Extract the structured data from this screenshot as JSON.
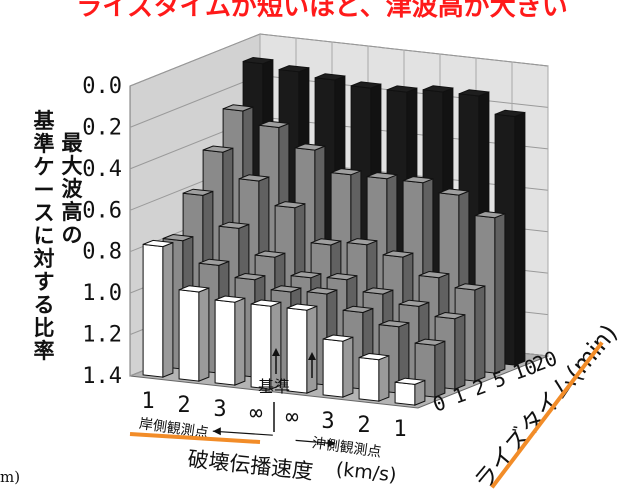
{
  "title": "ライズタイムが短いほど、津波高が大きい",
  "cut_unit": "m)",
  "chart_data": {
    "type": "3d-bar",
    "title": "ライズタイムが短いほど、津波高が大きい",
    "ylabel_lines": [
      "最大波高の",
      "基準ケースに対する比率"
    ],
    "zlabel": "ライズタイム(min)",
    "xlabel": "破壊伝播速度",
    "xunit": "(km/s)",
    "x_sublabel_left": "岸側観測点",
    "x_sublabel_right": "沖側観測点",
    "x_ticks": [
      "1",
      "2",
      "3",
      "∞",
      "∞",
      "3",
      "2",
      "1"
    ],
    "y_ticks": [
      "0.0",
      "0.2",
      "0.4",
      "0.6",
      "0.8",
      "1.0",
      "1.2",
      "1.4"
    ],
    "z_ticks": [
      "0",
      "1",
      "2",
      "5",
      "10",
      "20"
    ],
    "ylim": [
      0.0,
      1.4
    ],
    "y_axis_inverted": true,
    "base_label": "基準",
    "series": [
      {
        "rise_time": "0",
        "values": [
          0.77,
          0.97,
          1.0,
          1.0,
          1.0,
          1.13,
          1.2,
          1.3
        ]
      },
      {
        "rise_time": "1",
        "values": [
          0.78,
          0.88,
          0.93,
          0.97,
          0.96,
          1.03,
          1.08,
          1.15
        ]
      },
      {
        "rise_time": "2",
        "values": [
          0.6,
          0.74,
          0.86,
          0.94,
          0.93,
          0.98,
          1.02,
          1.06
        ]
      },
      {
        "rise_time": "5",
        "values": [
          0.43,
          0.55,
          0.66,
          0.82,
          0.8,
          0.84,
          0.92,
          0.96
        ]
      },
      {
        "rise_time": "10",
        "values": [
          0.27,
          0.33,
          0.42,
          0.52,
          0.52,
          0.52,
          0.56,
          0.65
        ]
      },
      {
        "rise_time": "20",
        "values": [
          0.08,
          0.1,
          0.12,
          0.14,
          0.14,
          0.12,
          0.12,
          0.2
        ]
      }
    ],
    "colors": {
      "front_row": "#ffffff",
      "mid_rows": "#8a8a8a",
      "back_row": "#1a1a1a",
      "floor": "#b4b4b4",
      "wall": "#e2e2e2",
      "highlight": "#f28c28"
    }
  }
}
